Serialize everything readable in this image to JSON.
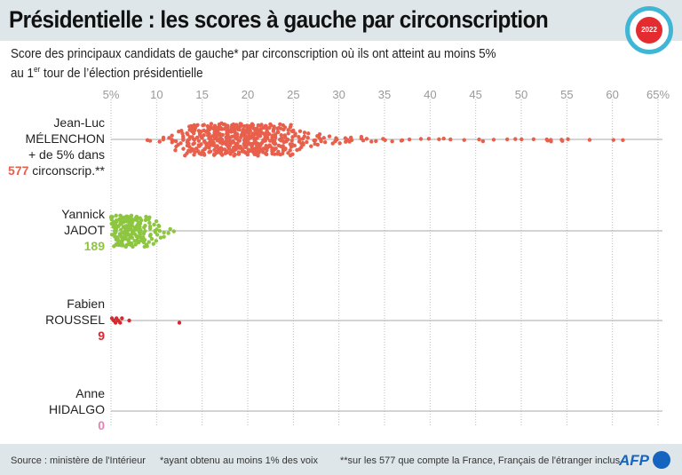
{
  "header": {
    "title": "Présidentielle : les scores à gauche par circonscription",
    "badge": "2022"
  },
  "subtitle": {
    "line1": "Score des principaux candidats de gauche* par circonscription où ils ont atteint au moins 5%",
    "line2_pre": "au 1",
    "line2_sup": "er",
    "line2_post": " tour de l’élection présidentielle"
  },
  "labels": {
    "melenchon_first": "Jean-Luc",
    "melenchon_last": "MÉLENCHON",
    "melenchon_note": "+ de 5% dans",
    "melenchon_count": "577",
    "melenchon_unit": " circonscrip.**",
    "jadot_first": "Yannick",
    "jadot_last": "JADOT",
    "jadot_count": "189",
    "roussel_first": "Fabien",
    "roussel_last": "ROUSSEL",
    "roussel_count": "9",
    "hidalgo_first": "Anne",
    "hidalgo_last": "HIDALGO",
    "hidalgo_count": "0"
  },
  "footer": {
    "source": "Source : ministère de l'Intérieur",
    "note1": "*ayant obtenu au moins 1% des voix",
    "note2": "**sur les 577 que compte la France, Français de l'étranger inclus",
    "logo": "AFP"
  },
  "chart_data": {
    "type": "scatter",
    "subtype": "beeswarm",
    "xlim": [
      5,
      65
    ],
    "ticks": [
      "5%",
      "10",
      "15",
      "20",
      "25",
      "30",
      "35",
      "40",
      "45",
      "50",
      "55",
      "60",
      "65%"
    ],
    "tick_values": [
      5,
      10,
      15,
      20,
      25,
      30,
      35,
      40,
      45,
      50,
      55,
      60,
      65
    ],
    "grid": "vertical dotted",
    "series": [
      {
        "name": "Jean-Luc MÉLENCHON",
        "count": 577,
        "color": "#e8604c",
        "histogram_1pct": {
          "9": 2,
          "10": 3,
          "11": 5,
          "12": 12,
          "13": 20,
          "14": 30,
          "15": 40,
          "16": 48,
          "17": 53,
          "18": 56,
          "19": 53,
          "20": 49,
          "21": 42,
          "22": 35,
          "23": 28,
          "24": 22,
          "25": 12,
          "26": 9,
          "27": 7,
          "28": 5,
          "29": 4,
          "30": 4,
          "31": 3,
          "32": 3,
          "33": 2,
          "34": 2,
          "35": 2,
          "36": 2,
          "37": 1,
          "38": 1,
          "39": 1,
          "40": 1,
          "41": 1,
          "42": 1,
          "43": 1,
          "45": 2,
          "46": 1,
          "48": 1,
          "49": 1,
          "50": 1,
          "51": 1,
          "52": 2,
          "53": 2,
          "54": 2,
          "55": 1,
          "57": 1,
          "60": 1,
          "61": 1
        }
      },
      {
        "name": "Yannick JADOT",
        "count": 189,
        "color": "#8dc63f",
        "histogram_1pct": {
          "5": 40,
          "6": 55,
          "7": 40,
          "8": 28,
          "9": 15,
          "10": 8,
          "11": 3
        }
      },
      {
        "name": "Fabien ROUSSEL",
        "count": 9,
        "color": "#d7282f",
        "values": [
          5.1,
          5.3,
          5.5,
          5.6,
          5.8,
          6.0,
          6.2,
          7.0,
          12.5
        ]
      },
      {
        "name": "Anne HIDALGO",
        "count": 0,
        "color": "#e87fb3",
        "values": []
      }
    ]
  }
}
